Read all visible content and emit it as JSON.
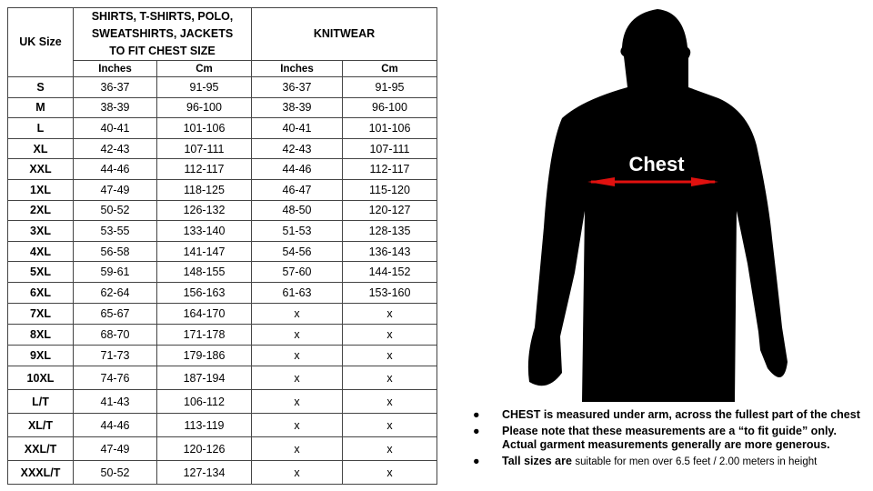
{
  "table": {
    "header": {
      "size_label": "UK Size",
      "shirts_label": "SHIRTS, T-SHIRTS, POLO, SWEATSHIRTS, JACKETS TO FIT CHEST SIZE",
      "knitwear_label": "KNITWEAR",
      "sub": [
        "Inches",
        "Cm",
        "Inches",
        "Cm"
      ]
    },
    "rows": [
      [
        "S",
        "36-37",
        "91-95",
        "36-37",
        "91-95"
      ],
      [
        "M",
        "38-39",
        "96-100",
        "38-39",
        "96-100"
      ],
      [
        "L",
        "40-41",
        "101-106",
        "40-41",
        "101-106"
      ],
      [
        "XL",
        "42-43",
        "107-111",
        "42-43",
        "107-111"
      ],
      [
        "XXL",
        "44-46",
        "112-117",
        "44-46",
        "112-117"
      ],
      [
        "1XL",
        "47-49",
        "118-125",
        "46-47",
        "115-120"
      ],
      [
        "2XL",
        "50-52",
        "126-132",
        "48-50",
        "120-127"
      ],
      [
        "3XL",
        "53-55",
        "133-140",
        "51-53",
        "128-135"
      ],
      [
        "4XL",
        "56-58",
        "141-147",
        "54-56",
        "136-143"
      ],
      [
        "5XL",
        "59-61",
        "148-155",
        "57-60",
        "144-152"
      ],
      [
        "6XL",
        "62-64",
        "156-163",
        "61-63",
        "153-160"
      ],
      [
        "7XL",
        "65-67",
        "164-170",
        "x",
        "x"
      ],
      [
        "8XL",
        "68-70",
        "171-178",
        "x",
        "x"
      ],
      [
        "9XL",
        "71-73",
        "179-186",
        "x",
        "x"
      ],
      [
        "10XL",
        "74-76",
        "187-194",
        "x",
        "x"
      ],
      [
        "L/T",
        "41-43",
        "106-112",
        "x",
        "x"
      ],
      [
        "XL/T",
        "44-46",
        "113-119",
        "x",
        "x"
      ],
      [
        "XXL/T",
        "47-49",
        "120-126",
        "x",
        "x"
      ],
      [
        "XXXL/T",
        "50-52",
        "127-134",
        "x",
        "x"
      ]
    ]
  },
  "figure": {
    "chest_label": "Chest",
    "arrow_color": "#e0110f",
    "silhouette_color": "#000000"
  },
  "notes": {
    "bullet": "●",
    "items": [
      {
        "bold": "CHEST is measured under arm, across the fullest part of the chest",
        "normal": ""
      },
      {
        "bold": "Please note that these measurements are a “to fit guide” only. Actual garment measurements generally are more generous.",
        "normal": ""
      },
      {
        "bold": "Tall sizes are ",
        "normal": "suitable for men over 6.5 feet / 2.00 meters in height"
      }
    ]
  }
}
